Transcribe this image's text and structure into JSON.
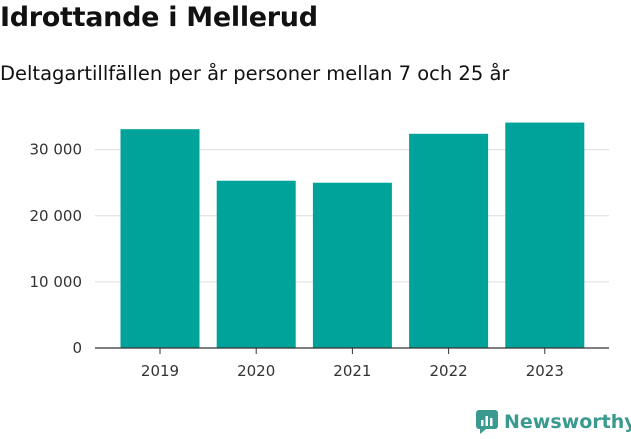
{
  "header": {
    "title": "Idrottande i Mellerud",
    "subtitle": "Deltagartillfällen per år personer mellan 7 och 25 år"
  },
  "brand": {
    "name": "Newsworthy",
    "logo_icon": "chart-bar-logo-icon",
    "color": "#3a9a8f"
  },
  "colors": {
    "bar": "#00a39a",
    "grid": "#dddddd",
    "axis": "#333333"
  },
  "chart_data": {
    "type": "bar",
    "categories": [
      "2019",
      "2020",
      "2021",
      "2022",
      "2023"
    ],
    "values": [
      33100,
      25300,
      25000,
      32400,
      34100
    ],
    "ylim": [
      0,
      36000
    ],
    "yticks": [
      0,
      10000,
      20000,
      30000
    ],
    "ytick_labels": [
      "0",
      "10 000",
      "20 000",
      "30 000"
    ],
    "grid": true,
    "xlabel": "",
    "ylabel": ""
  }
}
